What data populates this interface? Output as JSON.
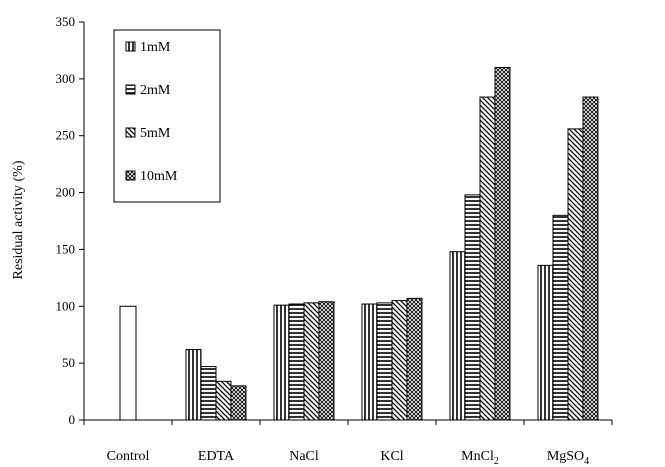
{
  "chart_data": {
    "type": "bar",
    "ylabel": "Residual activity (%)",
    "ylim": [
      0,
      350
    ],
    "yticks": [
      0,
      50,
      100,
      150,
      200,
      250,
      300,
      350
    ],
    "grid": false,
    "legend_position": "top-left",
    "categories": [
      {
        "label": "Control",
        "sub": ""
      },
      {
        "label": "EDTA",
        "sub": ""
      },
      {
        "label": "NaCl",
        "sub": ""
      },
      {
        "label": "KCl",
        "sub": ""
      },
      {
        "label": "MnCl",
        "sub": "2"
      },
      {
        "label": "MgSO",
        "sub": "4"
      }
    ],
    "control": {
      "category": "Control",
      "value": 100
    },
    "series": [
      {
        "name": "1mM",
        "pattern": "vertical",
        "values": [
          null,
          62,
          101,
          102,
          148,
          136
        ]
      },
      {
        "name": "2mM",
        "pattern": "horizontal",
        "values": [
          null,
          47,
          102,
          103,
          198,
          180
        ]
      },
      {
        "name": "5mM",
        "pattern": "diagonal",
        "values": [
          null,
          34,
          103,
          105,
          284,
          256
        ]
      },
      {
        "name": "10mM",
        "pattern": "crosshatch",
        "values": [
          null,
          30,
          104,
          107,
          310,
          284
        ]
      }
    ]
  }
}
